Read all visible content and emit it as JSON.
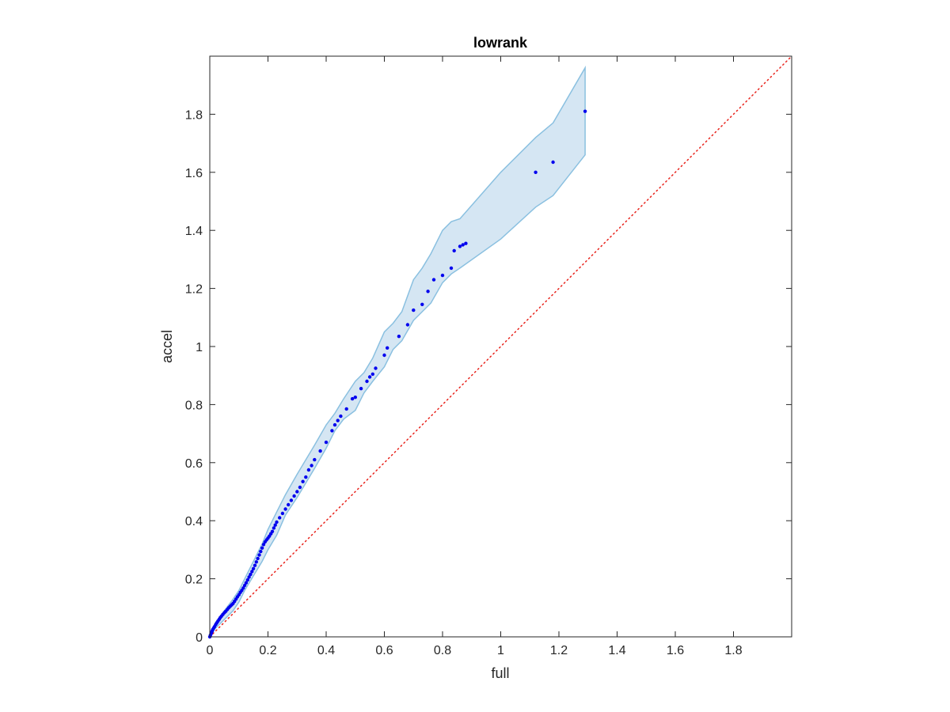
{
  "chart_data": {
    "type": "scatter",
    "title": "lowrank",
    "xlabel": "full",
    "ylabel": "accel",
    "xlim": [
      0,
      2
    ],
    "ylim": [
      0,
      2
    ],
    "xticks": [
      "0",
      "0.2",
      "0.4",
      "0.6",
      "0.8",
      "1",
      "1.2",
      "1.4",
      "1.6",
      "1.8"
    ],
    "yticks": [
      "0",
      "0.2",
      "0.4",
      "0.6",
      "0.8",
      "1",
      "1.2",
      "1.4",
      "1.6",
      "1.8"
    ],
    "grid": false,
    "colors": {
      "points": "#0000ee",
      "band_fill": "#d5e6f3",
      "band_edge": "#8ac0e0",
      "reference": "#e8231c",
      "axes": "#262626"
    },
    "reference_line": {
      "x": [
        0,
        2
      ],
      "y": [
        0,
        2
      ],
      "style": "dotted"
    },
    "band": {
      "x": [
        0,
        0.02,
        0.05,
        0.08,
        0.1,
        0.12,
        0.15,
        0.18,
        0.2,
        0.23,
        0.26,
        0.3,
        0.33,
        0.36,
        0.4,
        0.43,
        0.46,
        0.5,
        0.53,
        0.56,
        0.6,
        0.63,
        0.66,
        0.7,
        0.73,
        0.76,
        0.8,
        0.83,
        0.86,
        1.0,
        1.12,
        1.18,
        1.29
      ],
      "upper": [
        0,
        0.05,
        0.09,
        0.13,
        0.16,
        0.2,
        0.26,
        0.32,
        0.37,
        0.43,
        0.49,
        0.56,
        0.61,
        0.66,
        0.73,
        0.77,
        0.82,
        0.88,
        0.91,
        0.96,
        1.05,
        1.08,
        1.12,
        1.23,
        1.27,
        1.32,
        1.4,
        1.43,
        1.44,
        1.6,
        1.72,
        1.77,
        1.96
      ],
      "lower": [
        0,
        0.03,
        0.06,
        0.09,
        0.12,
        0.16,
        0.21,
        0.26,
        0.3,
        0.35,
        0.42,
        0.48,
        0.53,
        0.58,
        0.65,
        0.71,
        0.75,
        0.78,
        0.84,
        0.88,
        0.93,
        0.99,
        1.02,
        1.09,
        1.12,
        1.15,
        1.22,
        1.25,
        1.27,
        1.37,
        1.48,
        1.52,
        1.66
      ]
    },
    "series": [
      {
        "x": [
          0,
          0.002,
          0.004,
          0.006,
          0.008,
          0.01,
          0.013,
          0.016,
          0.02,
          0.024,
          0.028,
          0.032,
          0.036,
          0.04,
          0.045,
          0.05,
          0.055,
          0.06,
          0.065,
          0.07,
          0.075,
          0.08,
          0.085,
          0.09,
          0.095,
          0.1,
          0.105,
          0.11,
          0.115,
          0.12,
          0.125,
          0.13,
          0.135,
          0.14,
          0.145,
          0.15,
          0.155,
          0.16,
          0.165,
          0.17,
          0.175,
          0.18,
          0.185,
          0.19,
          0.195,
          0.2,
          0.205,
          0.21,
          0.215,
          0.22,
          0.225,
          0.23,
          0.24,
          0.25,
          0.26,
          0.27,
          0.28,
          0.29,
          0.3,
          0.31,
          0.32,
          0.33,
          0.34,
          0.35,
          0.36,
          0.38,
          0.4,
          0.42,
          0.43,
          0.44,
          0.45,
          0.47,
          0.49,
          0.5,
          0.52,
          0.54,
          0.55,
          0.56,
          0.57,
          0.6,
          0.61,
          0.65,
          0.68,
          0.7,
          0.73,
          0.75,
          0.77,
          0.8,
          0.83,
          0.84,
          0.86,
          0.87,
          0.88,
          1.12,
          1.18,
          1.29
        ],
        "y": [
          0,
          0.005,
          0.01,
          0.015,
          0.02,
          0.025,
          0.03,
          0.035,
          0.042,
          0.048,
          0.054,
          0.06,
          0.066,
          0.071,
          0.077,
          0.083,
          0.088,
          0.094,
          0.1,
          0.105,
          0.11,
          0.115,
          0.122,
          0.13,
          0.138,
          0.145,
          0.153,
          0.16,
          0.168,
          0.177,
          0.186,
          0.196,
          0.206,
          0.215,
          0.225,
          0.235,
          0.246,
          0.258,
          0.27,
          0.282,
          0.294,
          0.306,
          0.318,
          0.327,
          0.334,
          0.34,
          0.347,
          0.355,
          0.363,
          0.375,
          0.385,
          0.395,
          0.41,
          0.425,
          0.44,
          0.455,
          0.47,
          0.485,
          0.5,
          0.515,
          0.535,
          0.55,
          0.575,
          0.59,
          0.61,
          0.64,
          0.67,
          0.71,
          0.73,
          0.745,
          0.76,
          0.785,
          0.82,
          0.825,
          0.855,
          0.88,
          0.895,
          0.905,
          0.925,
          0.97,
          0.995,
          1.035,
          1.075,
          1.125,
          1.145,
          1.19,
          1.23,
          1.245,
          1.27,
          1.33,
          1.345,
          1.35,
          1.355,
          1.6,
          1.635,
          1.81
        ]
      }
    ]
  }
}
